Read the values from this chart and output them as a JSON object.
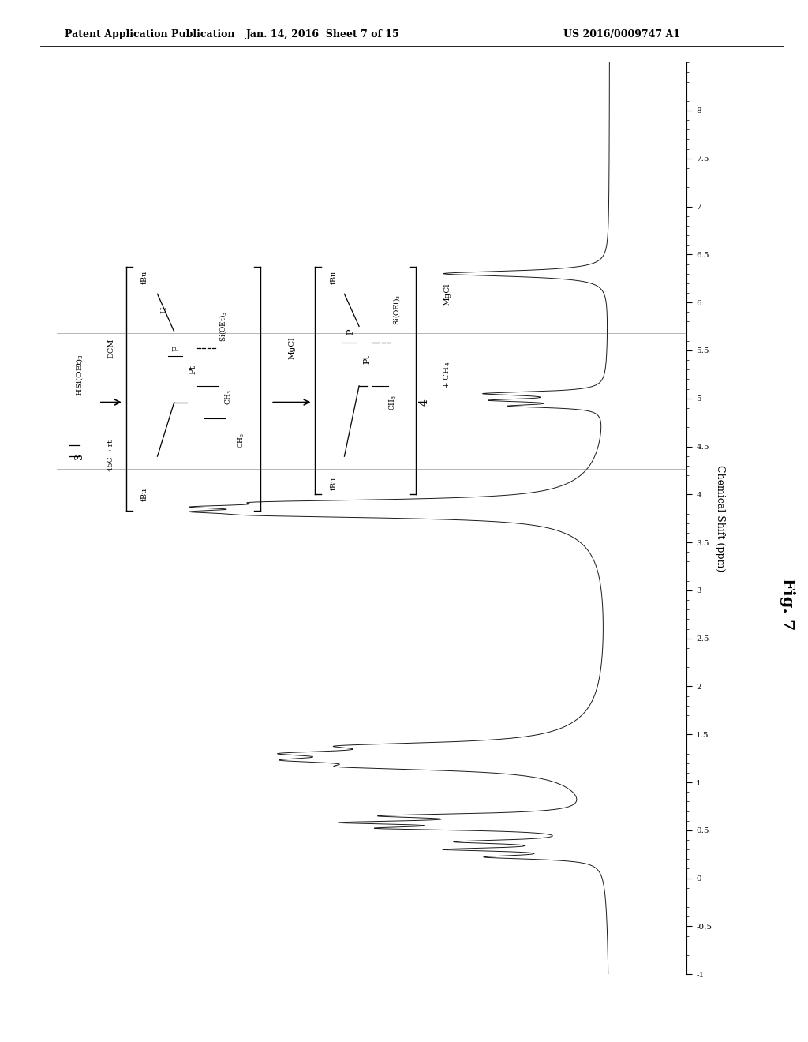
{
  "header_left": "Patent Application Publication",
  "header_mid": "Jan. 14, 2016  Sheet 7 of 15",
  "header_right": "US 2016/0009747 A1",
  "fig_label": "Fig. 7",
  "xlabel": "Chemical Shift (ppm)",
  "ppm_min": -1.0,
  "ppm_max": 8.5,
  "yticks": [
    8.0,
    7.5,
    7.0,
    6.5,
    6.0,
    5.5,
    5.0,
    4.5,
    4.0,
    3.5,
    3.0,
    2.5,
    2.0,
    1.5,
    1.0,
    0.5,
    0.0,
    -0.5,
    -1.0
  ],
  "background_color": "#ffffff",
  "spectrum_color": "#1a1a1a",
  "header_font_size": 9,
  "tick_font_size": 7.5,
  "xlabel_font_size": 9,
  "fig_label_font_size": 15,
  "chem_scheme": {
    "hsi_label": "HSi(OEt)$_3$",
    "compound3": "3",
    "arrow1_label_top": "DCM",
    "arrow1_label_bot": "-45C → rt",
    "intermediate1_tbu_top": "tBu",
    "intermediate1_tbu_bot": "tBu",
    "intermediate1_h": "H",
    "intermediate1_p": "P",
    "intermediate1_pt": "Pt",
    "intermediate1_si": "Si(OEt)$_3$",
    "intermediate1_ch3_a": "CH$_3$",
    "intermediate1_ch3_b": "CH$_3$",
    "arrow2_label": "MgCl",
    "intermediate2_tbu_top": "tBu",
    "intermediate2_tbu_bot": "tBu",
    "intermediate2_p": "P",
    "intermediate2_pt": "Pt",
    "intermediate2_si": "Si(OEt)$_3$",
    "intermediate2_ch3": "CH$_3$",
    "compound4": "4",
    "product_mgcl": "MgCl",
    "product_ch4": "+ CH$_4$"
  }
}
